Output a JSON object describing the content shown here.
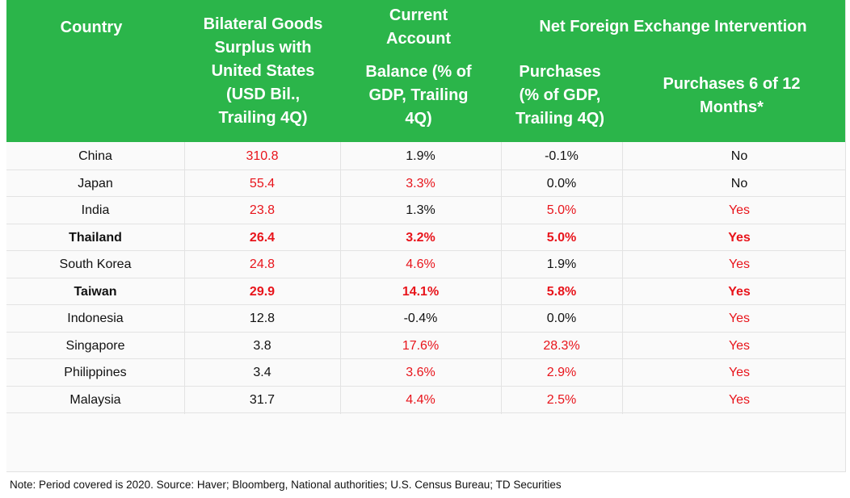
{
  "colors": {
    "header_bg": "#2bb54a",
    "header_text": "#ffffff",
    "highlight": "#e8141b",
    "default_text": "#111111"
  },
  "header": {
    "country": "Country",
    "bilateral": "Bilateral Goods\nSurplus with\nUnited States\n(USD Bil.,\nTrailing 4Q)",
    "current_account_top": "Current\nAccount",
    "current_account_bottom": "Balance (% of\nGDP, Trailing\n4Q)",
    "net_fx": "Net Foreign Exchange Intervention",
    "purchases": "Purchases\n(% of GDP,\nTrailing 4Q)",
    "purchases_months": "Purchases 6 of 12\nMonths*"
  },
  "rows": [
    {
      "country": "China",
      "bold": false,
      "surplus": "310.8",
      "surplus_red": true,
      "ca": "1.9%",
      "ca_red": false,
      "purch": "-0.1%",
      "purch_red": false,
      "months": "No",
      "months_red": false
    },
    {
      "country": "Japan",
      "bold": false,
      "surplus": "55.4",
      "surplus_red": true,
      "ca": "3.3%",
      "ca_red": true,
      "purch": "0.0%",
      "purch_red": false,
      "months": "No",
      "months_red": false
    },
    {
      "country": "India",
      "bold": false,
      "surplus": "23.8",
      "surplus_red": true,
      "ca": "1.3%",
      "ca_red": false,
      "purch": "5.0%",
      "purch_red": true,
      "months": "Yes",
      "months_red": true
    },
    {
      "country": "Thailand",
      "bold": true,
      "surplus": "26.4",
      "surplus_red": true,
      "ca": "3.2%",
      "ca_red": true,
      "purch": "5.0%",
      "purch_red": true,
      "months": "Yes",
      "months_red": true
    },
    {
      "country": "South Korea",
      "bold": false,
      "surplus": "24.8",
      "surplus_red": true,
      "ca": "4.6%",
      "ca_red": true,
      "purch": "1.9%",
      "purch_red": false,
      "months": "Yes",
      "months_red": true
    },
    {
      "country": "Taiwan",
      "bold": true,
      "surplus": "29.9",
      "surplus_red": true,
      "ca": "14.1%",
      "ca_red": true,
      "purch": "5.8%",
      "purch_red": true,
      "months": "Yes",
      "months_red": true
    },
    {
      "country": "Indonesia",
      "bold": false,
      "surplus": "12.8",
      "surplus_red": false,
      "ca": "-0.4%",
      "ca_red": false,
      "purch": "0.0%",
      "purch_red": false,
      "months": "Yes",
      "months_red": true
    },
    {
      "country": "Singapore",
      "bold": false,
      "surplus": "3.8",
      "surplus_red": false,
      "ca": "17.6%",
      "ca_red": true,
      "purch": "28.3%",
      "purch_red": true,
      "months": "Yes",
      "months_red": true
    },
    {
      "country": "Philippines",
      "bold": false,
      "surplus": "3.4",
      "surplus_red": false,
      "ca": "3.6%",
      "ca_red": true,
      "purch": "2.9%",
      "purch_red": true,
      "months": "Yes",
      "months_red": true
    },
    {
      "country": "Malaysia",
      "bold": false,
      "surplus": "31.7",
      "surplus_red": false,
      "ca": "4.4%",
      "ca_red": true,
      "purch": "2.5%",
      "purch_red": true,
      "months": "Yes",
      "months_red": true
    }
  ],
  "note": "Note: Period covered is 2020.  Source: Haver; Bloomberg, National authorities; U.S. Census Bureau; TD Securities"
}
